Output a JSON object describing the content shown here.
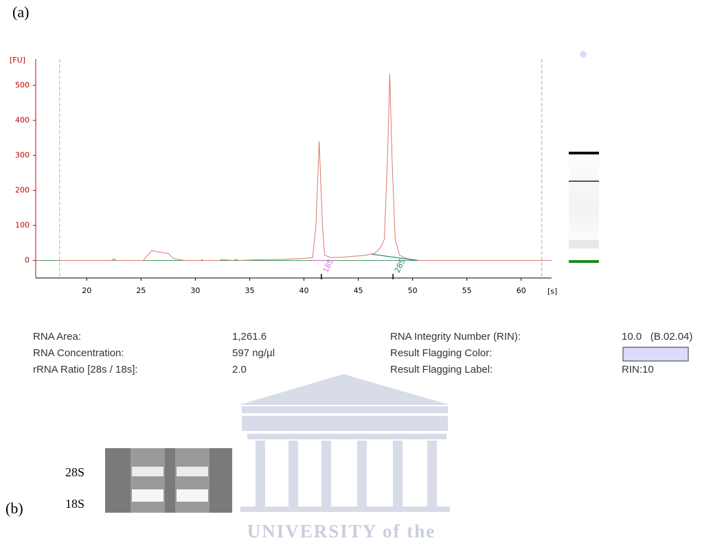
{
  "panel_labels": [
    "(a)",
    "(b)"
  ],
  "chart_data": {
    "type": "line",
    "y_label": "[FU]",
    "x_label": "[s]",
    "xlim": [
      15.3,
      62.8
    ],
    "ylim": [
      -50,
      575
    ],
    "xticks": [
      20,
      25,
      30,
      35,
      40,
      45,
      50,
      55,
      60
    ],
    "yticks": [
      0,
      100,
      200,
      300,
      400,
      500
    ],
    "markers": [
      17.5,
      61.9
    ],
    "marker_color": "#7dc87d",
    "series": [
      {
        "color": "#d9776e",
        "x": [
          17.5,
          22.3,
          22.5,
          22.7,
          25.2,
          25.6,
          26.0,
          26.5,
          27.0,
          27.5,
          28.0,
          29.0,
          30.5,
          30.6,
          30.7,
          32.2,
          32.4,
          33.5,
          33.7,
          34.0,
          35.5,
          38.0,
          40.0,
          40.8,
          41.1,
          41.4,
          41.7,
          41.9,
          42.5,
          43.5,
          44.5,
          45.5,
          46.5,
          47.0,
          47.4,
          47.7,
          47.9,
          48.1,
          48.4,
          48.8,
          49.5,
          50.5,
          62.8
        ],
        "values": [
          0,
          0,
          5,
          0,
          0,
          15,
          28,
          25,
          22,
          20,
          5,
          0,
          0,
          3,
          0,
          0,
          3,
          0,
          3,
          0,
          2,
          3,
          6,
          8,
          100,
          340,
          100,
          15,
          8,
          9,
          12,
          14,
          20,
          35,
          60,
          300,
          532,
          300,
          60,
          15,
          5,
          0,
          0
        ]
      },
      {
        "color": "#4a9a6a",
        "x": [
          15.3,
          62.8
        ],
        "values": [
          0,
          0
        ]
      }
    ],
    "peaks": [
      {
        "label": "18S",
        "x": 41.6,
        "color": "#e070e0",
        "base_x": [
          40.8,
          42.0
        ],
        "base_y": [
          0,
          0
        ]
      },
      {
        "label": "28S",
        "x": 48.2,
        "color": "#2a8080",
        "base_x": [
          46.2,
          50.5
        ],
        "base_y": [
          18,
          0
        ]
      }
    ]
  },
  "results": {
    "rows": [
      [
        "RNA Area:",
        "1,261.6",
        "RNA Integrity Number (RIN):",
        "10.0   (B.02.04)"
      ],
      [
        "RNA Concentration:",
        "597 ng/µl",
        "Result Flagging Color:",
        null
      ],
      [
        "rRNA Ratio [28s / 18s]:",
        "2.0",
        "Result Flagging Label:",
        "RIN:10"
      ]
    ],
    "flag_color": "#dcdcfa"
  },
  "gel": {
    "labels": [
      "28S",
      "18S"
    ]
  },
  "watermark": "UNIVERSITY of the"
}
